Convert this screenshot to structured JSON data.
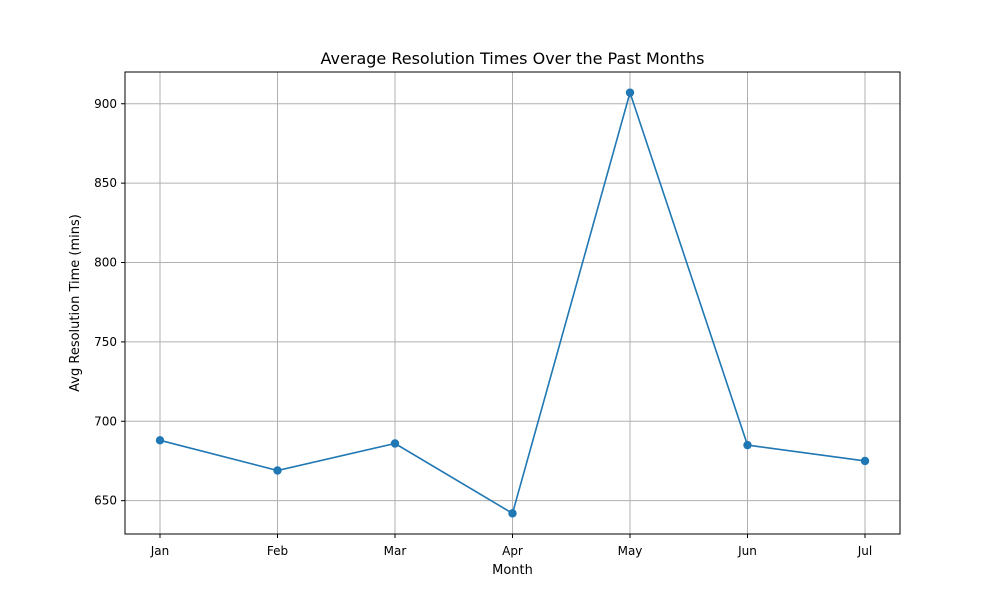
{
  "chart_data": {
    "type": "line",
    "title": "Average Resolution Times Over the Past Months",
    "xlabel": "Month",
    "ylabel": "Avg Resolution Time (mins)",
    "categories": [
      "Jan",
      "Feb",
      "Mar",
      "Apr",
      "May",
      "Jun",
      "Jul"
    ],
    "series": [
      {
        "values": [
          688,
          669,
          686,
          642,
          907,
          685,
          675
        ]
      }
    ],
    "ylim": [
      629,
      920
    ],
    "yticks": [
      650,
      700,
      750,
      800,
      850,
      900
    ],
    "grid": true,
    "line_color": "#1f77b4",
    "marker": "circle"
  }
}
